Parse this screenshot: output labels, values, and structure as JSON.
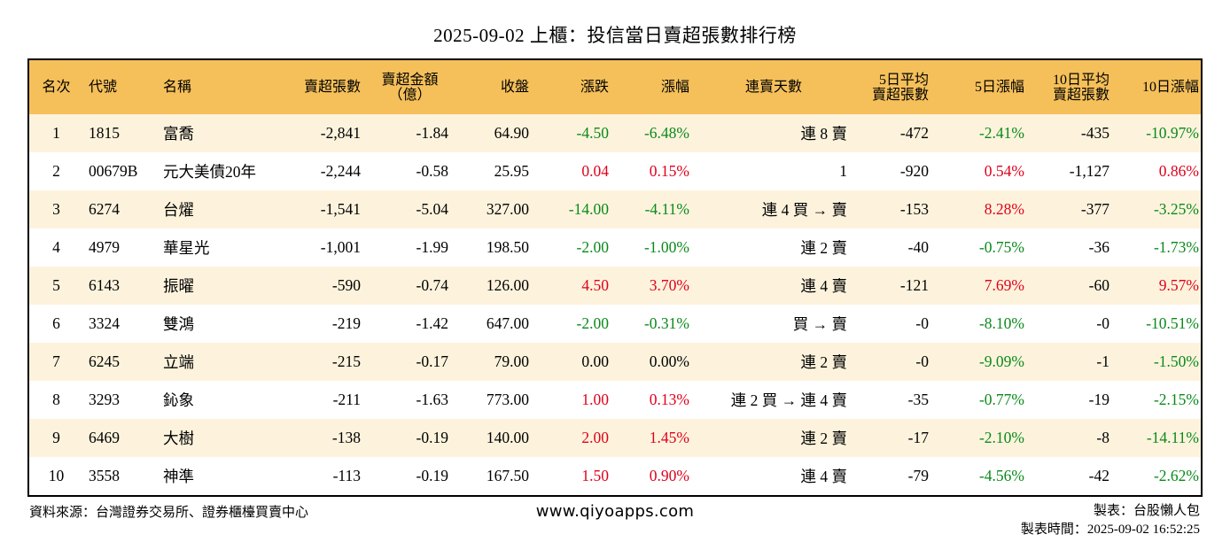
{
  "title": "2025-09-02 上櫃：投信當日賣超張數排行榜",
  "headers": {
    "rank": "名次",
    "code": "代號",
    "name": "名稱",
    "sell_shares": "賣超張數",
    "sell_amount_1": "賣超金額",
    "sell_amount_2": "（億）",
    "close": "收盤",
    "change": "漲跌",
    "change_pct": "漲幅",
    "streak": "連賣天數",
    "avg5_1": "5日平均",
    "avg5_2": "賣超張數",
    "pct5": "5日漲幅",
    "avg10_1": "10日平均",
    "avg10_2": "賣超張數",
    "pct10": "10日漲幅"
  },
  "colors": {
    "header_bg": "#f5c05a",
    "row_stripe": "#fdf3dd",
    "up": "#e0001b",
    "down": "#0a8a1a"
  },
  "rows": [
    {
      "rank": "1",
      "code": "1815",
      "name": "富喬",
      "sell_shares": "-2,841",
      "sell_amount": "-1.84",
      "close": "64.90",
      "change": "-4.50",
      "change_pct": "-6.48%",
      "streak": "連 8 賣",
      "avg5": "-472",
      "pct5": "-2.41%",
      "avg10": "-435",
      "pct10": "-10.97%"
    },
    {
      "rank": "2",
      "code": "00679B",
      "name": "元大美債20年",
      "sell_shares": "-2,244",
      "sell_amount": "-0.58",
      "close": "25.95",
      "change": "0.04",
      "change_pct": "0.15%",
      "streak": "1",
      "avg5": "-920",
      "pct5": "0.54%",
      "avg10": "-1,127",
      "pct10": "0.86%"
    },
    {
      "rank": "3",
      "code": "6274",
      "name": "台燿",
      "sell_shares": "-1,541",
      "sell_amount": "-5.04",
      "close": "327.00",
      "change": "-14.00",
      "change_pct": "-4.11%",
      "streak": "連 4 買 → 賣",
      "avg5": "-153",
      "pct5": "8.28%",
      "avg10": "-377",
      "pct10": "-3.25%"
    },
    {
      "rank": "4",
      "code": "4979",
      "name": "華星光",
      "sell_shares": "-1,001",
      "sell_amount": "-1.99",
      "close": "198.50",
      "change": "-2.00",
      "change_pct": "-1.00%",
      "streak": "連 2 賣",
      "avg5": "-40",
      "pct5": "-0.75%",
      "avg10": "-36",
      "pct10": "-1.73%"
    },
    {
      "rank": "5",
      "code": "6143",
      "name": "振曜",
      "sell_shares": "-590",
      "sell_amount": "-0.74",
      "close": "126.00",
      "change": "4.50",
      "change_pct": "3.70%",
      "streak": "連 4 賣",
      "avg5": "-121",
      "pct5": "7.69%",
      "avg10": "-60",
      "pct10": "9.57%"
    },
    {
      "rank": "6",
      "code": "3324",
      "name": "雙鴻",
      "sell_shares": "-219",
      "sell_amount": "-1.42",
      "close": "647.00",
      "change": "-2.00",
      "change_pct": "-0.31%",
      "streak": "買 → 賣",
      "avg5": "-0",
      "pct5": "-8.10%",
      "avg10": "-0",
      "pct10": "-10.51%"
    },
    {
      "rank": "7",
      "code": "6245",
      "name": "立端",
      "sell_shares": "-215",
      "sell_amount": "-0.17",
      "close": "79.00",
      "change": "0.00",
      "change_pct": "0.00%",
      "streak": "連 2 賣",
      "avg5": "-0",
      "pct5": "-9.09%",
      "avg10": "-1",
      "pct10": "-1.50%"
    },
    {
      "rank": "8",
      "code": "3293",
      "name": "鈊象",
      "sell_shares": "-211",
      "sell_amount": "-1.63",
      "close": "773.00",
      "change": "1.00",
      "change_pct": "0.13%",
      "streak": "連 2 買 → 連 4 賣",
      "avg5": "-35",
      "pct5": "-0.77%",
      "avg10": "-19",
      "pct10": "-2.15%"
    },
    {
      "rank": "9",
      "code": "6469",
      "name": "大樹",
      "sell_shares": "-138",
      "sell_amount": "-0.19",
      "close": "140.00",
      "change": "2.00",
      "change_pct": "1.45%",
      "streak": "連 2 賣",
      "avg5": "-17",
      "pct5": "-2.10%",
      "avg10": "-8",
      "pct10": "-14.11%"
    },
    {
      "rank": "10",
      "code": "3558",
      "name": "神準",
      "sell_shares": "-113",
      "sell_amount": "-0.19",
      "close": "167.50",
      "change": "1.50",
      "change_pct": "0.90%",
      "streak": "連 4 賣",
      "avg5": "-79",
      "pct5": "-4.56%",
      "avg10": "-42",
      "pct10": "-2.62%"
    }
  ],
  "footer": {
    "source": "資料來源：台灣證券交易所、證券櫃檯買賣中心",
    "website": "www.qiyoapps.com",
    "author": "製表：台股懶人包",
    "made_time": "製表時間：2025-09-02 16:52:25"
  }
}
